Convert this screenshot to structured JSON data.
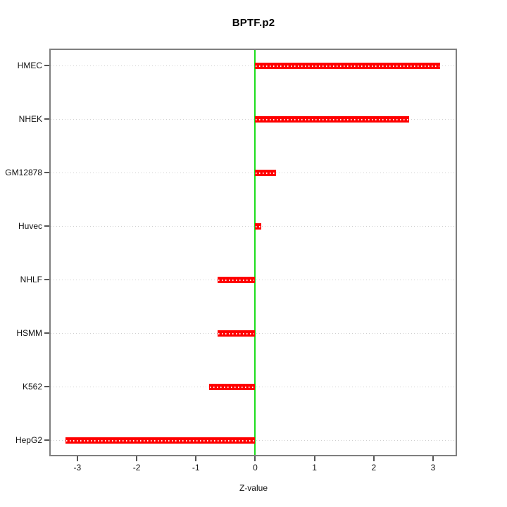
{
  "chart_data": {
    "type": "bar",
    "orientation": "horizontal",
    "title": "BPTF.p2",
    "xlabel": "Z-value",
    "categories": [
      "HMEC",
      "NHEK",
      "GM12878",
      "Huvec",
      "NHLF",
      "HSMM",
      "K562",
      "HepG2"
    ],
    "values": [
      3.12,
      2.6,
      0.35,
      0.1,
      -0.64,
      -0.63,
      -0.78,
      -3.2
    ],
    "xlim": [
      -3.45,
      3.38
    ],
    "xticks": [
      -3,
      -2,
      -1,
      0,
      1,
      2,
      3
    ],
    "grid": "dotted horizontal per category",
    "legend": "none",
    "colors": {
      "bar": "#ff0000",
      "zero_line": "#1ddd1d",
      "box_border": "#7f7f7f",
      "gridline": "#cfcfcf",
      "tick": "#555555",
      "text": "#111111",
      "background": "#ffffff"
    }
  }
}
